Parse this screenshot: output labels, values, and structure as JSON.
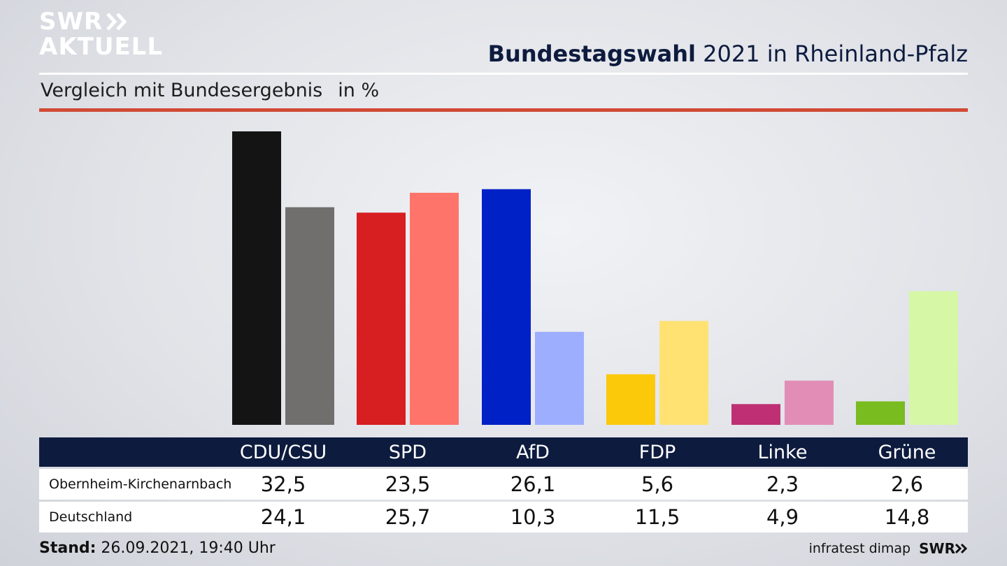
{
  "brand": {
    "line1": "SWR",
    "line2": "AKTUELL",
    "footer_brand": "SWR"
  },
  "header": {
    "title_bold": "Bundestagswahl",
    "title_rest": " 2021 in Rheinland-Pfalz"
  },
  "subtitle": {
    "text": "Vergleich mit Bundesergebnis",
    "unit": "in %"
  },
  "table": {
    "columns": [
      "CDU/CSU",
      "SPD",
      "AfD",
      "FDP",
      "Linke",
      "Grüne"
    ],
    "rows": [
      {
        "label": "Obernheim-Kirchenarnbach",
        "values": [
          "32,5",
          "23,5",
          "26,1",
          "5,6",
          "2,3",
          "2,6"
        ]
      },
      {
        "label": "Deutschland",
        "values": [
          "24,1",
          "25,7",
          "10,3",
          "11,5",
          "4,9",
          "14,8"
        ]
      }
    ]
  },
  "footer": {
    "stand_label": "Stand:",
    "stand_value": " 26.09.2021, 19:40 Uhr",
    "source": "infratest dimap"
  },
  "chart_data": {
    "type": "bar",
    "categories": [
      "CDU/CSU",
      "SPD",
      "AfD",
      "FDP",
      "Linke",
      "Grüne"
    ],
    "series": [
      {
        "name": "Obernheim-Kirchenarnbach",
        "values": [
          32.5,
          23.5,
          26.1,
          5.6,
          2.3,
          2.6
        ]
      },
      {
        "name": "Deutschland",
        "values": [
          24.1,
          25.7,
          10.3,
          11.5,
          4.9,
          14.8
        ]
      }
    ],
    "colors": {
      "local": [
        "#141414",
        "#d71e20",
        "#0021c6",
        "#fbc90a",
        "#bf2f74",
        "#78bc1f"
      ],
      "national": [
        "#706f6e",
        "#ff746a",
        "#9daeff",
        "#ffe271",
        "#e28db6",
        "#d6f7a5"
      ]
    },
    "ylim": [
      0,
      32.5
    ],
    "grid": false
  }
}
